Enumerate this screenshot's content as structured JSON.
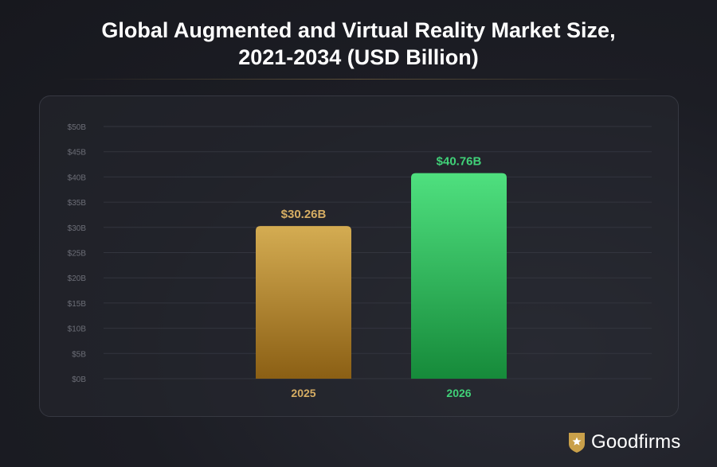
{
  "title_line1": "Global Augmented and Virtual Reality Market Size,",
  "title_line2": "2021-2034 (USD Billion)",
  "brand": {
    "name": "Goodfirms"
  },
  "colors": {
    "gold_top": "#d4ac52",
    "gold_bottom": "#8b5f14",
    "gold_text": "#d6ad63",
    "green_top": "#4fe07f",
    "green_bottom": "#168a3a",
    "green_text": "#40d178",
    "grid": "#33353e",
    "tick_text": "#6c6e77"
  },
  "chart_data": {
    "type": "bar",
    "categories": [
      "2025",
      "2026"
    ],
    "values": [
      30.26,
      40.76
    ],
    "data_labels": [
      "$30.26B",
      "$40.76B"
    ],
    "title": "Global Augmented and Virtual Reality Market Size, 2021-2034 (USD Billion)",
    "xlabel": "",
    "ylabel": "",
    "ylim": [
      0,
      50
    ],
    "yticks": [
      "$0B",
      "$5B",
      "$10B",
      "$15B",
      "$20B",
      "$25B",
      "$30B",
      "$35B",
      "$40B",
      "$45B",
      "$50B"
    ],
    "grid": true,
    "legend": "none"
  }
}
